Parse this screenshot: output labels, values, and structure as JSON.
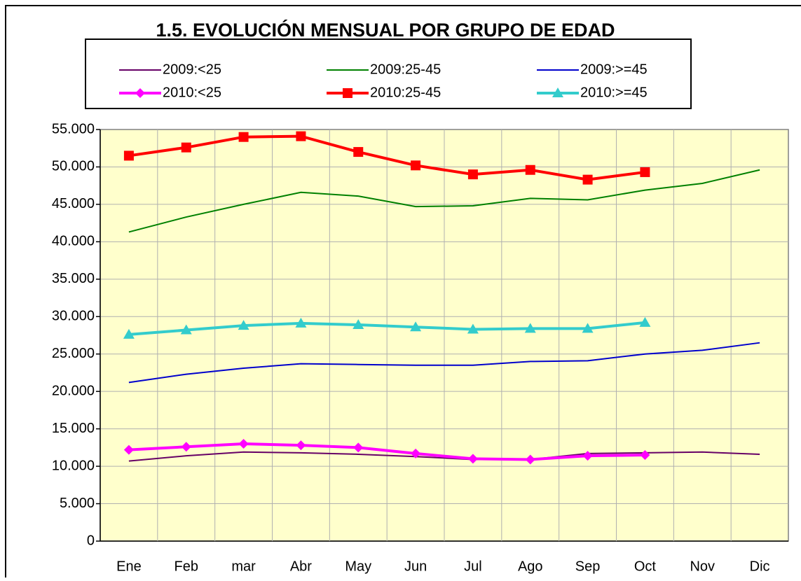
{
  "chart_data": {
    "type": "line",
    "title": "1.5. EVOLUCIÓN MENSUAL POR GRUPO DE EDAD",
    "categories": [
      "Ene",
      "Feb",
      "mar",
      "Abr",
      "May",
      "Jun",
      "Jul",
      "Ago",
      "Sep",
      "Oct",
      "Nov",
      "Dic"
    ],
    "ylim": [
      0,
      55000
    ],
    "yticks": [
      0,
      {
        "value": 5000,
        "label": "5.000"
      },
      {
        "value": 10000,
        "label": "10.000"
      },
      {
        "value": 15000,
        "label": "15.000"
      },
      {
        "value": 20000,
        "label": "20.000"
      },
      {
        "value": 25000,
        "label": "25.000"
      },
      {
        "value": 30000,
        "label": "30.000"
      },
      {
        "value": 35000,
        "label": "35.000"
      },
      {
        "value": 40000,
        "label": "40.000"
      },
      {
        "value": 45000,
        "label": "45.000"
      },
      {
        "value": 50000,
        "label": "50.000"
      },
      {
        "value": 55000,
        "label": "55.000"
      }
    ],
    "grid": true,
    "series": [
      {
        "name": "2009:<25",
        "color": "#660066",
        "values": [
          10700,
          11400,
          11900,
          11800,
          11600,
          11300,
          10900,
          10900,
          11700,
          11800,
          11900,
          11600
        ]
      },
      {
        "name": "2009:25-45",
        "color": "#008000",
        "values": [
          41300,
          43300,
          45000,
          46600,
          46100,
          44700,
          44800,
          45800,
          45600,
          46900,
          47800,
          49600
        ]
      },
      {
        "name": "2009:>=45",
        "color": "#0000cc",
        "values": [
          21200,
          22300,
          23100,
          23700,
          23600,
          23500,
          23500,
          24000,
          24100,
          25000,
          25500,
          26500
        ]
      },
      {
        "name": "2010:<25",
        "color": "#ff00ff",
        "marker": "diamond",
        "values": [
          12200,
          12600,
          13000,
          12800,
          12500,
          11700,
          11000,
          10900,
          11400,
          11500,
          null,
          null
        ]
      },
      {
        "name": "2010:25-45",
        "color": "#ff0000",
        "marker": "square",
        "values": [
          51500,
          52600,
          54000,
          54100,
          52000,
          50200,
          49000,
          49600,
          48300,
          49300,
          null,
          null
        ]
      },
      {
        "name": "2010:>=45",
        "color": "#33cccc",
        "marker": "triangle",
        "values": [
          27600,
          28200,
          28800,
          29100,
          28900,
          28600,
          28300,
          28400,
          28400,
          29200,
          null,
          null
        ]
      }
    ]
  }
}
